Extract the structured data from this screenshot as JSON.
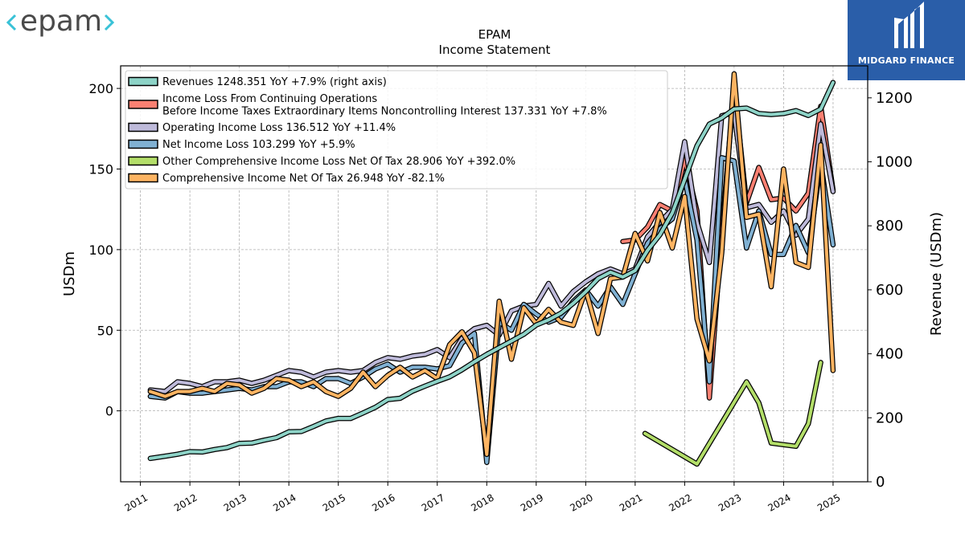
{
  "branding": {
    "company_logo_text": "epam",
    "badge_text": "MIDGARD FINANCE"
  },
  "chart_data": {
    "type": "line",
    "title": "EPAM",
    "subtitle": "Income Statement",
    "ylabel": "USDm",
    "ylabel_right": "Revenue (USDm)",
    "ylim": [
      -44,
      214
    ],
    "ylim_right": [
      0,
      1300
    ],
    "xlim": [
      2010.6,
      2025.7
    ],
    "yticks": [
      0,
      50,
      100,
      150,
      200
    ],
    "yticks_right": [
      0,
      200,
      400,
      600,
      800,
      1000,
      1200
    ],
    "xticks": [
      2011,
      2012,
      2013,
      2014,
      2015,
      2016,
      2017,
      2018,
      2019,
      2020,
      2021,
      2022,
      2023,
      2024,
      2025
    ],
    "grid": true,
    "legend_position": "top-left",
    "series": [
      {
        "name": "Revenues  1248.351 YoY +7.9% (right axis)",
        "axis": "right",
        "color": "#8dd3c7",
        "x": [
          2011.2,
          2011.5,
          2011.75,
          2012.0,
          2012.25,
          2012.5,
          2012.75,
          2013.0,
          2013.25,
          2013.5,
          2013.75,
          2014.0,
          2014.25,
          2014.5,
          2014.75,
          2015.0,
          2015.25,
          2015.5,
          2015.75,
          2016.0,
          2016.25,
          2016.5,
          2016.75,
          2017.0,
          2017.25,
          2017.5,
          2017.75,
          2018.0,
          2018.25,
          2018.5,
          2018.75,
          2019.0,
          2019.25,
          2019.5,
          2019.75,
          2020.0,
          2020.25,
          2020.5,
          2020.75,
          2021.0,
          2021.25,
          2021.5,
          2021.75,
          2022.0,
          2022.25,
          2022.5,
          2022.75,
          2023.0,
          2023.25,
          2023.5,
          2023.75,
          2024.0,
          2024.25,
          2024.5,
          2024.75,
          2025.0
        ],
        "values": [
          73,
          80,
          86,
          94,
          93,
          101,
          107,
          120,
          121,
          130,
          138,
          156,
          157,
          173,
          190,
          198,
          198,
          215,
          233,
          257,
          261,
          283,
          299,
          314,
          328,
          350,
          375,
          398,
          419,
          440,
          461,
          490,
          506,
          527,
          558,
          594,
          635,
          655,
          640,
          660,
          723,
          772,
          840,
          945,
          1050,
          1118,
          1137,
          1165,
          1168,
          1151,
          1148,
          1151,
          1160,
          1145,
          1165,
          1248
        ]
      },
      {
        "name": "Income Loss From Continuing Operations\nBefore Income Taxes Extraordinary Items Noncontrolling Interest  137.331 YoY +7.8%",
        "color": "#fb8072",
        "x": [
          2020.75,
          2021.0,
          2021.25,
          2021.5,
          2021.75,
          2022.0,
          2022.25,
          2022.5,
          2022.75,
          2023.0,
          2023.25,
          2023.5,
          2023.75,
          2024.0,
          2024.25,
          2024.5,
          2024.75,
          2025.0
        ],
        "values": [
          105,
          106,
          114,
          128,
          124,
          156,
          124,
          8,
          110,
          201,
          129,
          151,
          131,
          132,
          124,
          135,
          189,
          137
        ]
      },
      {
        "name": "Operating Income Loss  136.512 YoY +11.4%",
        "color": "#bebada",
        "x": [
          2011.2,
          2011.5,
          2011.75,
          2012.0,
          2012.25,
          2012.5,
          2012.75,
          2013.0,
          2013.25,
          2013.5,
          2013.75,
          2014.0,
          2014.25,
          2014.5,
          2014.75,
          2015.0,
          2015.25,
          2015.5,
          2015.75,
          2016.0,
          2016.25,
          2016.5,
          2016.75,
          2017.0,
          2017.25,
          2017.5,
          2017.75,
          2018.0,
          2018.25,
          2018.5,
          2018.75,
          2019.0,
          2019.25,
          2019.5,
          2019.75,
          2020.0,
          2020.25,
          2020.5,
          2020.75,
          2021.0,
          2021.25,
          2021.5,
          2021.75,
          2022.0,
          2022.25,
          2022.5,
          2022.75,
          2023.0,
          2023.25,
          2023.5,
          2023.75,
          2024.0,
          2024.25,
          2024.5,
          2024.75,
          2025.0
        ],
        "values": [
          13,
          12,
          18,
          17,
          15,
          18,
          18,
          19,
          17,
          19,
          22,
          25,
          24,
          21,
          24,
          25,
          24,
          25,
          30,
          33,
          32,
          34,
          35,
          38,
          33,
          45,
          51,
          53,
          47,
          62,
          65,
          66,
          79,
          65,
          74,
          80,
          85,
          88,
          85,
          88,
          108,
          117,
          125,
          167,
          117,
          92,
          183,
          185,
          126,
          128,
          117,
          124,
          109,
          119,
          178,
          136
        ]
      },
      {
        "name": "Net Income Loss  103.299 YoY +5.9%",
        "color": "#80b1d3",
        "x": [
          2011.2,
          2011.5,
          2011.75,
          2012.0,
          2012.25,
          2012.5,
          2012.75,
          2013.0,
          2013.25,
          2013.5,
          2013.75,
          2014.0,
          2014.25,
          2014.5,
          2014.75,
          2015.0,
          2015.25,
          2015.5,
          2015.75,
          2016.0,
          2016.25,
          2016.5,
          2016.75,
          2017.0,
          2017.25,
          2017.5,
          2017.75,
          2018.0,
          2018.25,
          2018.5,
          2018.75,
          2019.0,
          2019.25,
          2019.5,
          2019.75,
          2020.0,
          2020.25,
          2020.5,
          2020.75,
          2021.0,
          2021.25,
          2021.5,
          2021.75,
          2022.0,
          2022.25,
          2022.5,
          2022.75,
          2023.0,
          2023.25,
          2023.5,
          2023.75,
          2024.0,
          2024.25,
          2024.5,
          2024.75,
          2025.0
        ],
        "values": [
          9,
          8,
          12,
          11,
          11,
          12,
          13,
          14,
          13,
          15,
          15,
          18,
          18,
          15,
          20,
          20,
          17,
          21,
          26,
          29,
          24,
          27,
          27,
          26,
          28,
          42,
          48,
          -32,
          55,
          50,
          66,
          60,
          55,
          58,
          68,
          75,
          65,
          77,
          66,
          85,
          104,
          113,
          119,
          144,
          106,
          18,
          157,
          155,
          101,
          124,
          97,
          97,
          115,
          98,
          154,
          103
        ]
      },
      {
        "name": "Other Comprehensive Income Loss Net Of Tax  28.906 YoY +392.0%",
        "color": "#b3de69",
        "x": [
          2021.2,
          2022.25,
          2023.25,
          2023.5,
          2023.75,
          2024.25,
          2024.5,
          2024.75
        ],
        "values": [
          -14,
          -33,
          18,
          5,
          -20,
          -22,
          -8,
          30
        ]
      },
      {
        "name": "Comprehensive Income Net Of Tax  26.948 YoY -82.1%",
        "color": "#fdb462",
        "x": [
          2011.2,
          2011.5,
          2011.75,
          2012.0,
          2012.25,
          2012.5,
          2012.75,
          2013.0,
          2013.25,
          2013.5,
          2013.75,
          2014.0,
          2014.25,
          2014.5,
          2014.75,
          2015.0,
          2015.25,
          2015.5,
          2015.75,
          2016.0,
          2016.25,
          2016.5,
          2016.75,
          2017.0,
          2017.25,
          2017.5,
          2017.75,
          2018.0,
          2018.25,
          2018.5,
          2018.75,
          2019.0,
          2019.25,
          2019.5,
          2019.75,
          2020.0,
          2020.25,
          2020.5,
          2020.75,
          2021.0,
          2021.25,
          2021.5,
          2021.75,
          2022.0,
          2022.25,
          2022.5,
          2022.75,
          2023.0,
          2023.25,
          2023.5,
          2023.75,
          2024.0,
          2024.25,
          2024.5,
          2024.75,
          2025.0
        ],
        "values": [
          12,
          9,
          12,
          12,
          14,
          12,
          17,
          16,
          11,
          14,
          20,
          19,
          15,
          18,
          12,
          9,
          14,
          24,
          15,
          22,
          27,
          21,
          25,
          20,
          41,
          49,
          36,
          -27,
          68,
          32,
          64,
          54,
          63,
          55,
          53,
          75,
          48,
          82,
          83,
          110,
          93,
          123,
          101,
          133,
          57,
          31,
          98,
          209,
          120,
          122,
          77,
          150,
          92,
          89,
          165,
          25
        ]
      }
    ]
  }
}
